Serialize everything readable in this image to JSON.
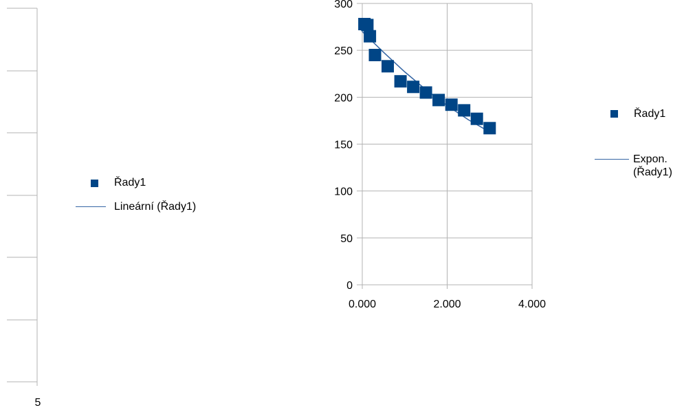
{
  "colors": {
    "series": "#004586",
    "trendline": "#3465a4",
    "axis": "#b3b3b3",
    "grid": "#b3b3b3"
  },
  "chart_data": [
    {
      "type": "scatter",
      "title": "",
      "xlabel": "",
      "ylabel": "",
      "x_ticks": [],
      "y_ticks": [],
      "visible_x_tick_label": "5",
      "series": [],
      "legend": {
        "position": "right",
        "entries": [
          "Řady1",
          "Lineární (Řady1)"
        ]
      }
    },
    {
      "type": "scatter",
      "title": "",
      "xlabel": "",
      "ylabel": "",
      "xlim": [
        0,
        4
      ],
      "ylim": [
        0,
        300
      ],
      "x_ticks": [
        0,
        2,
        4
      ],
      "x_tick_labels": [
        "0.000",
        "2.000",
        "4.000"
      ],
      "y_ticks": [
        0,
        50,
        100,
        150,
        200,
        250,
        300
      ],
      "y_tick_labels": [
        "0",
        "50",
        "100",
        "150",
        "200",
        "250",
        "300"
      ],
      "grid": true,
      "series": [
        {
          "name": "Řady1",
          "x": [
            0.05,
            0.12,
            0.18,
            0.3,
            0.6,
            0.9,
            1.2,
            1.5,
            1.8,
            2.1,
            2.4,
            2.7,
            3.0
          ],
          "y": [
            278,
            277,
            265,
            245,
            233,
            217,
            211,
            205,
            197,
            192,
            186,
            177,
            167
          ]
        }
      ],
      "trendline": {
        "name": "Expon. (Řady1)",
        "type": "exponential",
        "x": [
          0.0,
          0.5,
          1.0,
          1.5,
          2.0,
          2.5,
          3.0
        ],
        "y": [
          270,
          248,
          227,
          208,
          191,
          176,
          163
        ]
      },
      "legend": {
        "position": "right",
        "entries": [
          "Řady1",
          "Expon. (Řady1)"
        ]
      }
    }
  ],
  "legend1": {
    "series_label": "Řady1",
    "trend_label": "Lineární (Řady1)"
  },
  "legend2": {
    "series_label": "Řady1",
    "trend_label_line1": "Expon.",
    "trend_label_line2": "(Řady1)"
  },
  "left_axis": {
    "tick_label": "5"
  }
}
